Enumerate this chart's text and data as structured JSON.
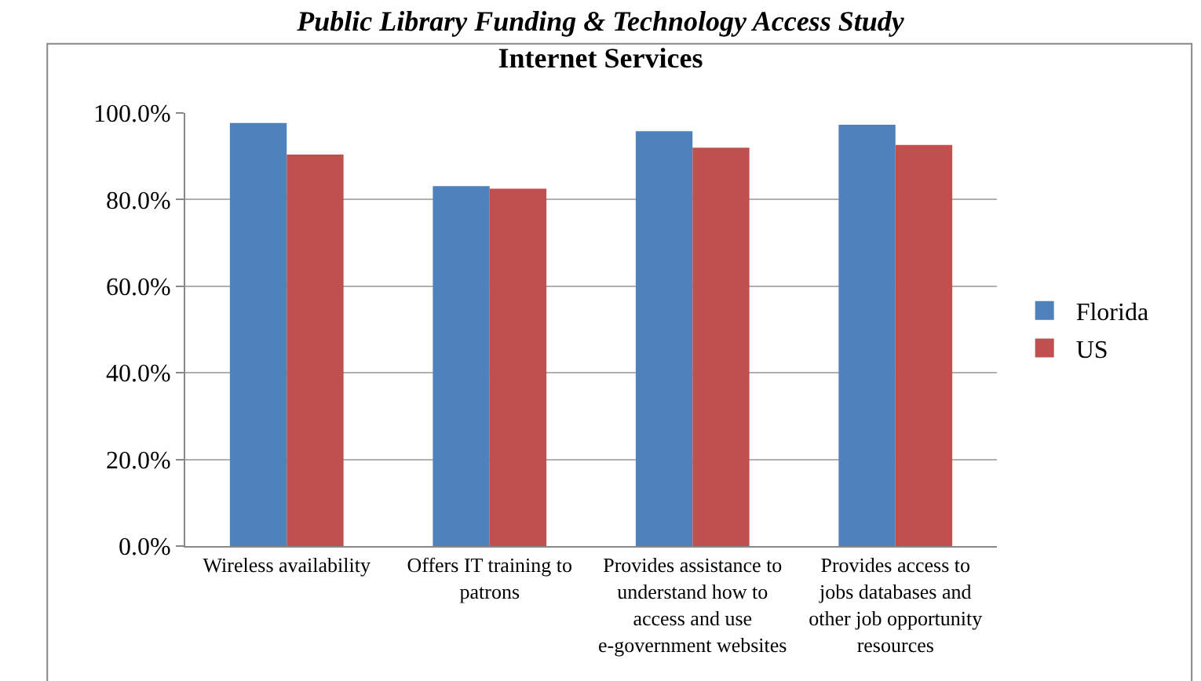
{
  "chart_data": {
    "type": "bar",
    "title": "Public Library Funding & Technology Access Study",
    "subtitle": "Internet Services",
    "categories": [
      "Wireless availability",
      "Offers IT training to patrons",
      "Provides assistance to understand how to access and use e-government websites",
      "Provides access to jobs databases and other job opportunity resources"
    ],
    "series": [
      {
        "name": "Florida",
        "color": "#4f81bd",
        "values": [
          97.7,
          83.1,
          95.8,
          97.3
        ]
      },
      {
        "name": "US",
        "color": "#c0504d",
        "values": [
          90.4,
          82.5,
          92.0,
          92.6
        ]
      }
    ],
    "ylim": [
      0,
      100
    ],
    "yticks": [
      {
        "value": 0,
        "label": "0.0%"
      },
      {
        "value": 20,
        "label": "20.0%"
      },
      {
        "value": 40,
        "label": "40.0%"
      },
      {
        "value": 60,
        "label": "60.0%"
      },
      {
        "value": 80,
        "label": "80.0%"
      },
      {
        "value": 100,
        "label": "100.0%"
      }
    ],
    "grid": "y",
    "legend": "right"
  }
}
